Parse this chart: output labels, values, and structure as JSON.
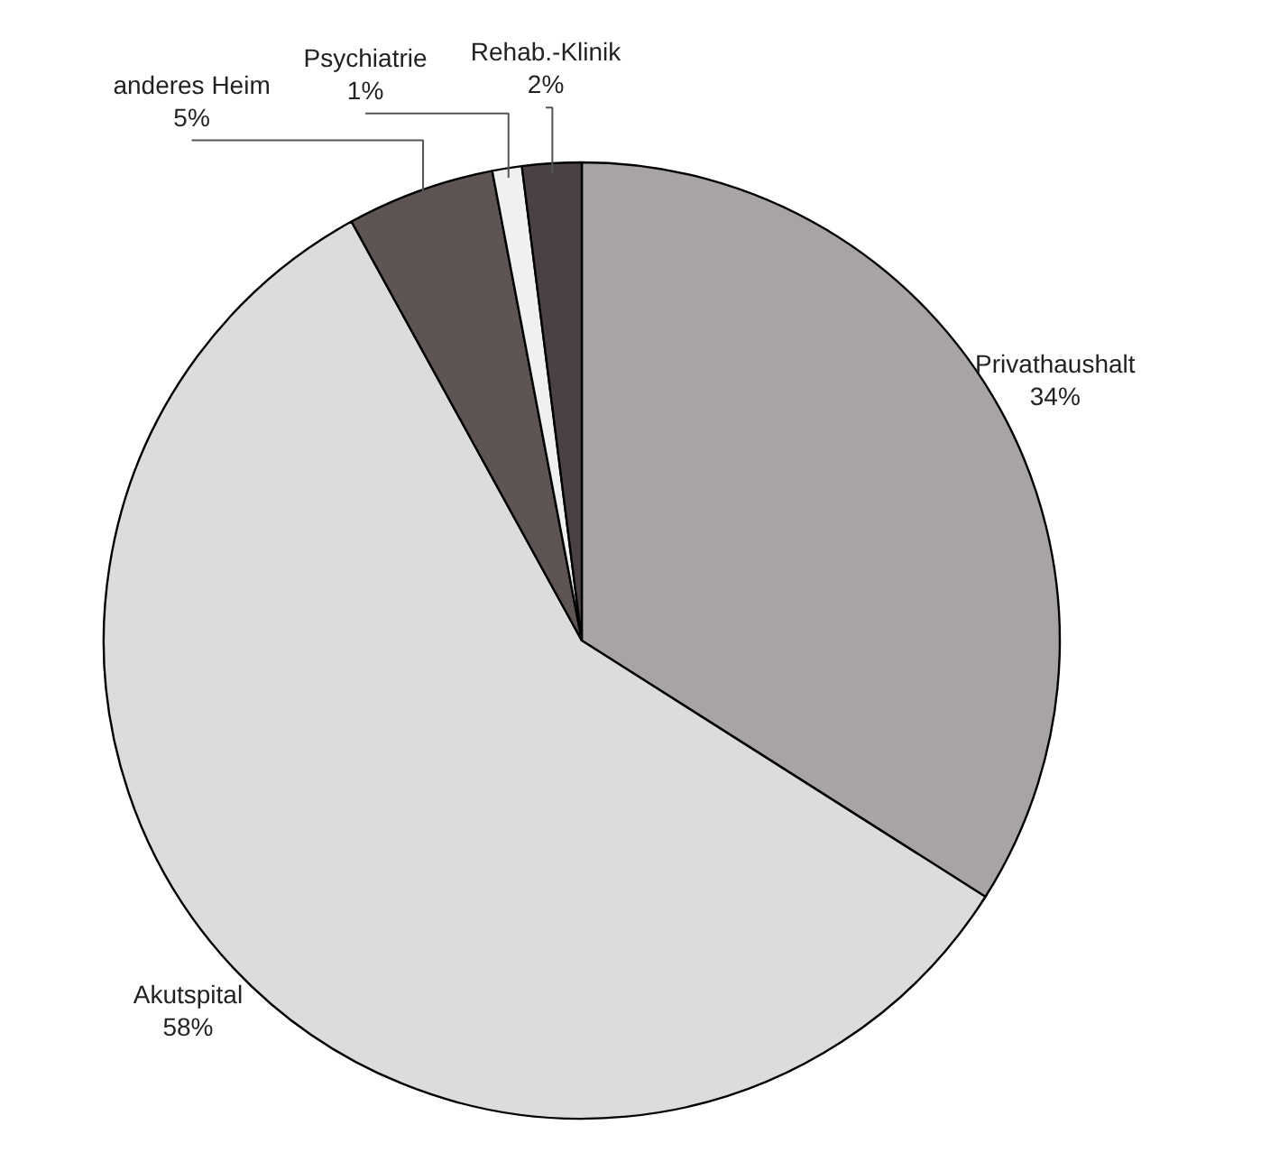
{
  "chart_data": {
    "type": "pie",
    "categories": [
      "Privathaushalt",
      "Akutspital",
      "anderes Heim",
      "Psychiatrie",
      "Rehab.-Klinik"
    ],
    "values": [
      34,
      58,
      5,
      1,
      2
    ],
    "colors": [
      "#a8a4a4",
      "#dcdcdc",
      "#5e5454",
      "#f0f0f0",
      "#4a4242"
    ],
    "value_labels": [
      "34%",
      "58%",
      "5%",
      "1%",
      "2%"
    ]
  }
}
